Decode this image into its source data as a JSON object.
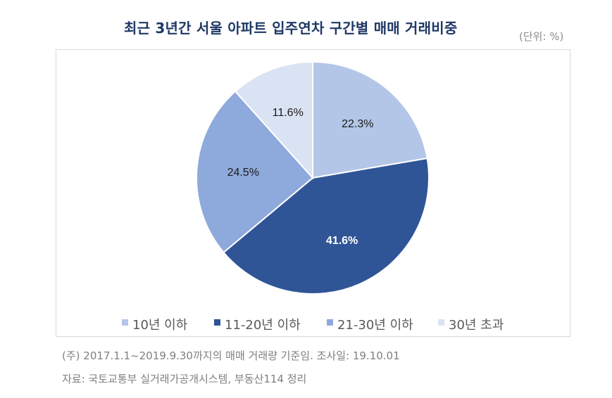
{
  "header": {
    "title": "최근 3년간 서울 아파트 입주연차 구간별 매매 거래비중",
    "unit": "(단위: %)"
  },
  "colors": {
    "title": "#1F3864",
    "slice_1": "#B4C6E7",
    "slice_2": "#2F5597",
    "slice_3": "#8EA9DB",
    "slice_4": "#DAE3F3"
  },
  "legend": [
    {
      "label": "10년 이하",
      "color": "#B4C6E7"
    },
    {
      "label": "11-20년 이하",
      "color": "#2F5597"
    },
    {
      "label": "21-30년 이하",
      "color": "#8EA9DB"
    },
    {
      "label": "30년 초과",
      "color": "#DAE3F3"
    }
  ],
  "footer": {
    "note": "(주) 2017.1.1~2019.9.30까지의 매매 거래량 기준임. 조사일: 19.10.01",
    "source": "자료: 국토교통부 실거래가공개시스템, 부동산114 정리"
  },
  "chart_data": {
    "type": "pie",
    "title": "최근 3년간 서울 아파트 입주연차 구간별 매매 거래비중",
    "unit": "%",
    "categories": [
      "10년 이하",
      "11-20년 이하",
      "21-30년 이하",
      "30년 초과"
    ],
    "values": [
      22.3,
      41.6,
      24.5,
      11.6
    ],
    "labels": [
      "22.3%",
      "41.6%",
      "24.5%",
      "11.6%"
    ],
    "colors": [
      "#B4C6E7",
      "#2F5597",
      "#8EA9DB",
      "#DAE3F3"
    ],
    "start_angle_deg": 0,
    "direction": "clockwise",
    "legend_position": "bottom"
  }
}
